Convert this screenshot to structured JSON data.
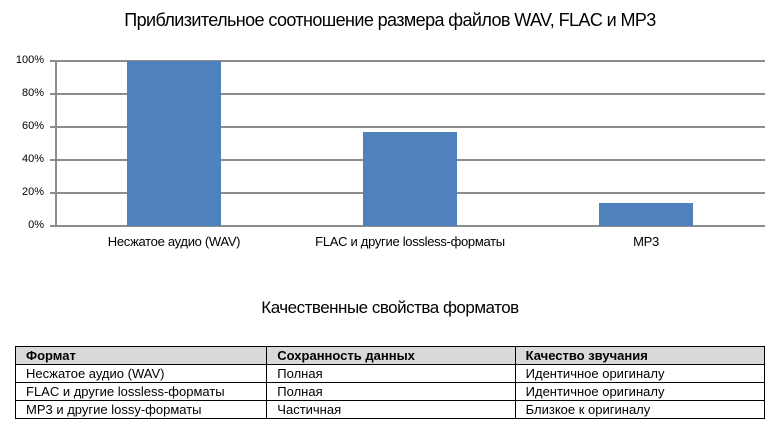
{
  "chart_data": {
    "type": "bar",
    "title": "Приблизительное соотношение размера файлов WAV, FLAC и MP3",
    "categories": [
      "Несжатое аудио (WAV)",
      "FLAC и другие lossless-форматы",
      "MP3"
    ],
    "values": [
      100,
      57,
      14
    ],
    "xlabel": "",
    "ylabel": "",
    "ylim": [
      0,
      100
    ],
    "yticks": [
      "0%",
      "20%",
      "40%",
      "60%",
      "80%",
      "100%"
    ],
    "grid": true,
    "legend": "none",
    "bar_color": "#4f81bd"
  },
  "table": {
    "title": "Качественные свойства форматов",
    "headers": [
      "Формат",
      "Сохранность данных",
      "Качество звучания"
    ],
    "rows": [
      [
        "Несжатое аудио (WAV)",
        "Полная",
        "Идентичное оригиналу"
      ],
      [
        "FLAC и другие lossless-форматы",
        "Полная",
        "Идентичное оригиналу"
      ],
      [
        "MP3 и другие lossy-форматы",
        "Частичная",
        "Близкое к оригиналу"
      ]
    ],
    "header_bg": "#d9d9d9"
  }
}
